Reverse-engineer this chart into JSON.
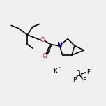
{
  "bg_color": "#f0f0f0",
  "line_color": "#000000",
  "line_width": 1.2,
  "atom_colors": {
    "N": "#0000ee",
    "O": "#dd0000",
    "B": "#000000",
    "K": "#000000",
    "F": "#000000",
    "C": "#000000"
  },
  "font_size": 6.5
}
